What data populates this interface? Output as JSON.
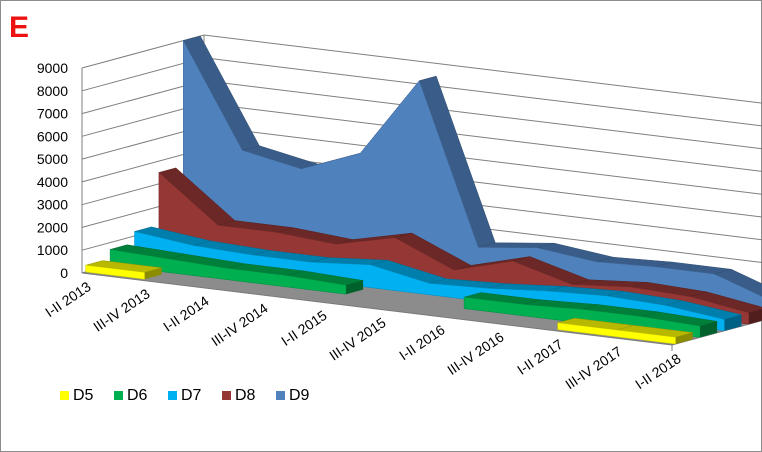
{
  "panel_label": "E",
  "chart_data": {
    "type": "area",
    "style": "3d-stacked-depth",
    "categories": [
      "I-II 2013",
      "III-IV 2013",
      "I-II 2014",
      "III-IV 2014",
      "I-II 2015",
      "III-IV 2015",
      "I-II 2016",
      "III-IV 2016",
      "I-II 2017",
      "III-IV 2017",
      "I-II 2018"
    ],
    "yticks": [
      "0",
      "1000",
      "2000",
      "3000",
      "4000",
      "5000",
      "6000",
      "7000",
      "8000",
      "9000"
    ],
    "ylim": [
      0,
      9000
    ],
    "grid": true,
    "legend_position": "bottom-left",
    "series": [
      {
        "name": "D5",
        "color": "#ffff00",
        "values": [
          300,
          300,
          null,
          null,
          null,
          null,
          null,
          null,
          300,
          300,
          300
        ]
      },
      {
        "name": "D6",
        "color": "#00b050",
        "values": [
          700,
          600,
          500,
          500,
          400,
          null,
          500,
          500,
          600,
          600,
          500
        ]
      },
      {
        "name": "D7",
        "color": "#00b0f0",
        "values": [
          1200,
          900,
          800,
          800,
          1000,
          500,
          600,
          800,
          900,
          800,
          500
        ]
      },
      {
        "name": "D8",
        "color": "#953735",
        "values": [
          3500,
          1500,
          1500,
          1300,
          1900,
          800,
          1500,
          800,
          1000,
          900,
          500
        ]
      },
      {
        "name": "D9",
        "color": "#4f81bd",
        "values": [
          9000,
          4500,
          4000,
          5000,
          8500,
          1500,
          1800,
          1500,
          1600,
          1600,
          700
        ]
      }
    ]
  }
}
